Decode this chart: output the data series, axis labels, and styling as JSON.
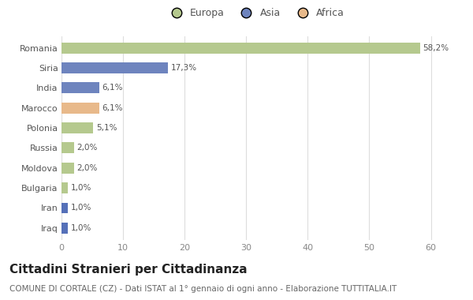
{
  "categories": [
    "Romania",
    "Siria",
    "India",
    "Marocco",
    "Polonia",
    "Russia",
    "Moldova",
    "Bulgaria",
    "Iran",
    "Iraq"
  ],
  "values": [
    58.2,
    17.3,
    6.1,
    6.1,
    5.1,
    2.0,
    2.0,
    1.0,
    1.0,
    1.0
  ],
  "labels": [
    "58,2%",
    "17,3%",
    "6,1%",
    "6,1%",
    "5,1%",
    "2,0%",
    "2,0%",
    "1,0%",
    "1,0%",
    "1,0%"
  ],
  "colors": [
    "#b5c98e",
    "#6e84be",
    "#6e84be",
    "#e8b98a",
    "#b5c98e",
    "#b5c98e",
    "#b5c98e",
    "#b5c98e",
    "#5570b8",
    "#5570b8"
  ],
  "legend_labels": [
    "Europa",
    "Asia",
    "Africa"
  ],
  "legend_colors": [
    "#b5c98e",
    "#6e84be",
    "#e8b98a"
  ],
  "title": "Cittadini Stranieri per Cittadinanza",
  "subtitle": "COMUNE DI CORTALE (CZ) - Dati ISTAT al 1° gennaio di ogni anno - Elaborazione TUTTITALIA.IT",
  "xlim": [
    0,
    63
  ],
  "xticks": [
    0,
    10,
    20,
    30,
    40,
    50,
    60
  ],
  "background_color": "#ffffff",
  "bar_height": 0.55,
  "title_fontsize": 11,
  "subtitle_fontsize": 7.5,
  "label_fontsize": 7.5,
  "tick_fontsize": 8,
  "legend_fontsize": 9
}
